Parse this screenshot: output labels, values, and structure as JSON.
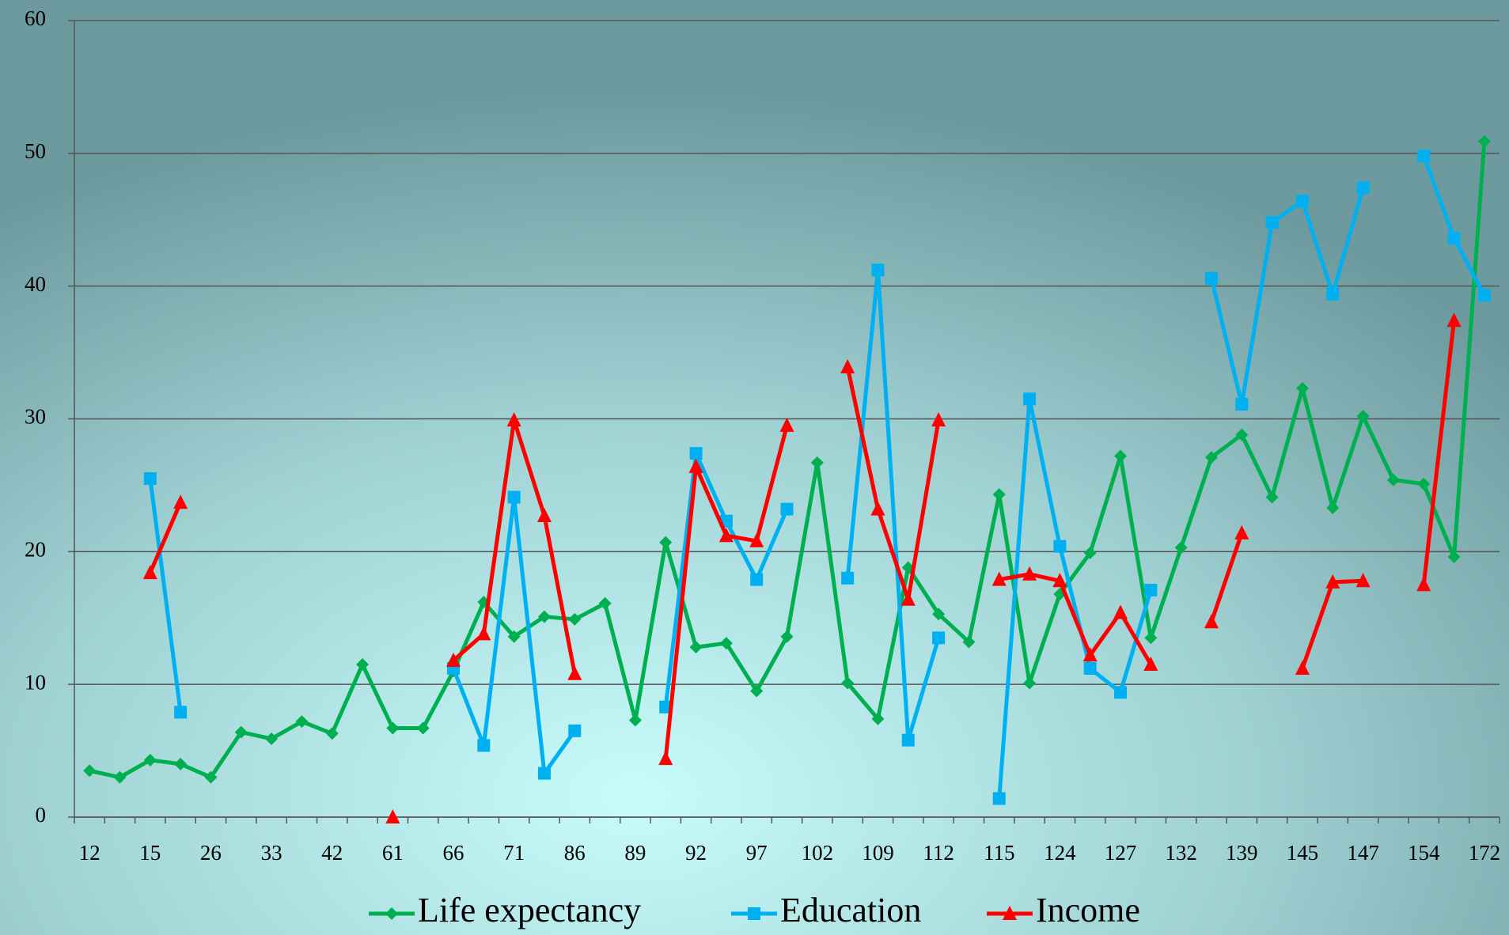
{
  "chart_data": {
    "type": "line",
    "categories": [
      "12",
      null,
      "15",
      null,
      "26",
      null,
      "33",
      null,
      "42",
      null,
      "61",
      null,
      "66",
      null,
      "71",
      null,
      "86",
      null,
      "89",
      null,
      "92",
      null,
      "97",
      null,
      "102",
      null,
      "109",
      null,
      "112",
      null,
      "115",
      null,
      "124",
      null,
      "127",
      null,
      "132",
      null,
      "139",
      null,
      "145",
      null,
      "147",
      null,
      "154",
      null,
      "172"
    ],
    "series": [
      {
        "name": "Life expectancy",
        "color": "#00b050",
        "marker": "diamond",
        "values": [
          3.5,
          3.0,
          4.3,
          4.0,
          3.0,
          6.4,
          5.9,
          7.2,
          6.3,
          11.5,
          6.7,
          6.7,
          11.0,
          16.2,
          13.6,
          15.1,
          14.9,
          16.1,
          7.3,
          20.7,
          12.8,
          13.1,
          9.5,
          13.6,
          26.7,
          10.1,
          7.4,
          18.8,
          15.3,
          13.2,
          24.3,
          10.1,
          16.8,
          19.9,
          27.2,
          13.5,
          20.3,
          27.1,
          28.8,
          24.1,
          32.3,
          23.3,
          30.2,
          25.4,
          25.1,
          19.6,
          50.9
        ]
      },
      {
        "name": "Education",
        "color": "#00b0f0",
        "marker": "square",
        "values": [
          null,
          null,
          25.5,
          7.9,
          null,
          null,
          null,
          null,
          null,
          null,
          null,
          null,
          11.2,
          5.4,
          24.1,
          3.3,
          6.5,
          null,
          null,
          8.3,
          27.4,
          22.3,
          17.9,
          23.2,
          null,
          18.0,
          41.2,
          5.8,
          13.5,
          null,
          1.4,
          31.5,
          20.4,
          11.2,
          9.4,
          17.1,
          null,
          40.6,
          31.1,
          44.8,
          46.4,
          39.4,
          47.4,
          null,
          49.8,
          43.6,
          39.3
        ]
      },
      {
        "name": "Income",
        "color": "#ff0000",
        "marker": "triangle",
        "values": [
          null,
          null,
          18.4,
          23.7,
          null,
          null,
          null,
          null,
          null,
          null,
          0,
          null,
          11.8,
          13.8,
          29.9,
          22.7,
          10.8,
          null,
          null,
          4.4,
          26.4,
          21.2,
          20.8,
          29.5,
          null,
          33.9,
          23.2,
          16.4,
          29.9,
          null,
          17.9,
          18.3,
          17.8,
          12.2,
          15.4,
          11.5,
          null,
          14.7,
          21.4,
          null,
          11.2,
          17.7,
          17.8,
          null,
          17.5,
          37.4,
          null
        ]
      }
    ],
    "ylim": [
      0,
      60
    ],
    "yticks": [
      0,
      10,
      20,
      30,
      40,
      50,
      60
    ],
    "grid": true,
    "legend": "bottom"
  }
}
